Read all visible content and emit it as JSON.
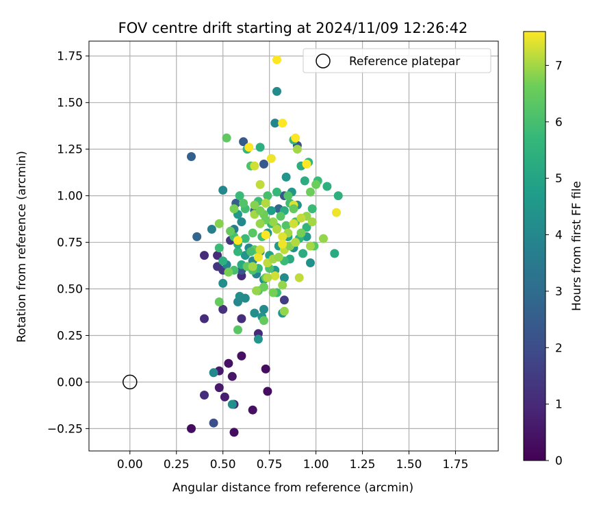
{
  "chart_data": {
    "type": "scatter",
    "title": "FOV centre drift starting at 2024/11/09 12:26:42",
    "xlabel": "Angular distance from reference (arcmin)",
    "ylabel": "Rotation from reference (arcmin)",
    "xlim": [
      -0.22,
      1.98
    ],
    "ylim": [
      -0.37,
      1.83
    ],
    "xticks": [
      "0.00",
      "0.25",
      "0.50",
      "0.75",
      "1.00",
      "1.25",
      "1.50",
      "1.75"
    ],
    "yticks": [
      "−0.25",
      "0.00",
      "0.25",
      "0.50",
      "0.75",
      "1.00",
      "1.25",
      "1.50",
      "1.75"
    ],
    "grid": true,
    "legend": {
      "position": "top-right",
      "label": "Reference platepar"
    },
    "reference_point": {
      "x": 0,
      "y": 0
    },
    "colorbar": {
      "label": "Hours from first FF file",
      "min": 0,
      "max": 7.6,
      "ticks": [
        "0",
        "1",
        "2",
        "3",
        "4",
        "5",
        "6",
        "7"
      ],
      "colormap": "viridis"
    },
    "series": [
      {
        "color_by": "hours",
        "points": [
          [
            0.33,
            -0.25,
            0.3
          ],
          [
            0.56,
            -0.27,
            0.3
          ],
          [
            0.66,
            -0.15,
            0.4
          ],
          [
            0.74,
            -0.05,
            0.3
          ],
          [
            0.51,
            -0.08,
            0.7
          ],
          [
            0.48,
            -0.03,
            0.6
          ],
          [
            0.55,
            0.03,
            0.5
          ],
          [
            0.48,
            0.06,
            0.6
          ],
          [
            0.53,
            0.1,
            0.4
          ],
          [
            0.6,
            0.14,
            0.4
          ],
          [
            0.73,
            0.07,
            0.3
          ],
          [
            0.56,
            -0.12,
            0.9
          ],
          [
            0.4,
            -0.07,
            1.1
          ],
          [
            0.45,
            -0.22,
            2.1
          ],
          [
            0.4,
            0.34,
            1.1
          ],
          [
            0.5,
            0.39,
            1.2
          ],
          [
            0.6,
            0.34,
            1.1
          ],
          [
            0.69,
            0.26,
            1.0
          ],
          [
            0.4,
            0.68,
            1.1
          ],
          [
            0.47,
            0.62,
            1.3
          ],
          [
            0.5,
            0.6,
            1.4
          ],
          [
            0.47,
            0.68,
            1.0
          ],
          [
            0.54,
            0.76,
            1.3
          ],
          [
            0.6,
            0.57,
            1.1
          ],
          [
            0.83,
            0.44,
            1.5
          ],
          [
            0.33,
            1.21,
            2.6
          ],
          [
            0.36,
            0.78,
            2.8
          ],
          [
            0.61,
            1.29,
            2.4
          ],
          [
            0.72,
            1.17,
            2.4
          ],
          [
            0.83,
            1.0,
            2.3
          ],
          [
            0.9,
            1.27,
            2.2
          ],
          [
            0.57,
            0.96,
            2.5
          ],
          [
            0.67,
            0.92,
            2.4
          ],
          [
            0.8,
            0.93,
            2.8
          ],
          [
            0.6,
            0.6,
            2.3
          ],
          [
            0.44,
            0.82,
            3.7
          ],
          [
            0.5,
            1.03,
            4.0
          ],
          [
            0.45,
            0.05,
            4.0
          ],
          [
            0.55,
            -0.12,
            4.3
          ],
          [
            0.5,
            0.53,
            4.2
          ],
          [
            0.58,
            0.43,
            4.0
          ],
          [
            0.59,
            0.46,
            4.2
          ],
          [
            0.62,
            0.45,
            4.1
          ],
          [
            0.67,
            0.37,
            4.2
          ],
          [
            0.69,
            0.23,
            4.4
          ],
          [
            0.72,
            0.39,
            4.1
          ],
          [
            0.71,
            0.35,
            4.4
          ],
          [
            0.79,
            1.56,
            4.1
          ],
          [
            0.78,
            1.39,
            3.9
          ],
          [
            0.84,
            1.1,
            4.4
          ],
          [
            0.56,
            0.82,
            3.5
          ],
          [
            0.6,
            0.86,
            4.0
          ],
          [
            0.58,
            0.9,
            4.6
          ],
          [
            0.52,
            0.63,
            3.9
          ],
          [
            0.62,
            0.68,
            4.4
          ],
          [
            0.64,
            0.72,
            4.0
          ],
          [
            0.7,
            0.7,
            4.3
          ],
          [
            0.74,
            0.8,
            4.5
          ],
          [
            0.76,
            0.92,
            4.7
          ],
          [
            0.8,
            0.73,
            4.6
          ],
          [
            0.85,
            0.78,
            4.9
          ],
          [
            0.88,
            0.72,
            4.3
          ],
          [
            0.83,
            0.56,
            4.1
          ],
          [
            0.82,
            0.37,
            4.5
          ],
          [
            0.9,
            0.95,
            4.3
          ],
          [
            0.95,
            0.78,
            4.6
          ],
          [
            0.97,
            0.64,
            4.3
          ],
          [
            0.87,
            1.02,
            4.5
          ],
          [
            0.68,
            0.58,
            3.8
          ],
          [
            0.72,
            0.55,
            4.2
          ],
          [
            0.66,
            0.65,
            4.0
          ],
          [
            0.78,
            0.6,
            4.6
          ],
          [
            0.75,
            0.68,
            4.9
          ],
          [
            0.52,
            1.31,
            6.4
          ],
          [
            0.63,
            1.25,
            5.6
          ],
          [
            0.65,
            1.16,
            6.1
          ],
          [
            0.7,
            1.26,
            5.4
          ],
          [
            0.88,
            1.3,
            5.7
          ],
          [
            0.92,
            1.16,
            5.3
          ],
          [
            0.96,
            1.18,
            5.6
          ],
          [
            1.01,
            1.08,
            5.8
          ],
          [
            1.06,
            1.05,
            5.4
          ],
          [
            1.12,
            1.0,
            5.4
          ],
          [
            1.1,
            0.69,
            5.2
          ],
          [
            0.98,
            0.93,
            5.8
          ],
          [
            0.94,
            1.08,
            5.3
          ],
          [
            0.86,
            0.96,
            5.9
          ],
          [
            0.83,
            0.92,
            5.3
          ],
          [
            0.89,
            0.86,
            6.0
          ],
          [
            0.95,
            0.83,
            5.6
          ],
          [
            0.99,
            0.73,
            6.3
          ],
          [
            0.93,
            0.69,
            5.3
          ],
          [
            0.91,
            0.77,
            5.6
          ],
          [
            0.86,
            0.66,
            5.2
          ],
          [
            0.83,
            0.65,
            5.8
          ],
          [
            0.75,
            0.61,
            6.1
          ],
          [
            0.73,
            0.56,
            6.4
          ],
          [
            0.79,
            0.48,
            5.8
          ],
          [
            0.69,
            0.49,
            6.2
          ],
          [
            0.69,
            0.61,
            5.7
          ],
          [
            0.66,
            0.6,
            6.1
          ],
          [
            0.6,
            0.63,
            5.2
          ],
          [
            0.56,
            0.6,
            6.0
          ],
          [
            0.58,
            0.7,
            5.6
          ],
          [
            0.53,
            0.59,
            6.7
          ],
          [
            0.5,
            0.65,
            5.4
          ],
          [
            0.48,
            0.72,
            5.8
          ],
          [
            0.56,
            0.78,
            6.0
          ],
          [
            0.58,
            0.74,
            5.2
          ],
          [
            0.62,
            0.77,
            5.8
          ],
          [
            0.66,
            0.8,
            6.3
          ],
          [
            0.62,
            0.93,
            5.9
          ],
          [
            0.59,
            1.0,
            5.8
          ],
          [
            0.61,
            0.96,
            6.2
          ],
          [
            0.69,
            0.97,
            5.9
          ],
          [
            0.72,
            0.9,
            6.6
          ],
          [
            0.76,
            0.85,
            5.7
          ],
          [
            0.79,
            0.83,
            6.2
          ],
          [
            0.81,
            0.89,
            6.3
          ],
          [
            0.84,
            0.84,
            6.2
          ],
          [
            0.79,
            1.02,
            5.7
          ],
          [
            0.74,
            1.0,
            6.0
          ],
          [
            0.71,
            0.78,
            5.9
          ],
          [
            0.67,
            0.71,
            6.5
          ],
          [
            0.65,
            0.7,
            6.0
          ],
          [
            0.63,
            0.62,
            6.5
          ],
          [
            0.54,
            0.81,
            6.5
          ],
          [
            0.56,
            0.93,
            6.7
          ],
          [
            0.48,
            0.85,
            6.8
          ],
          [
            0.48,
            0.43,
            6.5
          ],
          [
            0.58,
            0.28,
            6.3
          ],
          [
            0.72,
            0.33,
            6.5
          ],
          [
            0.72,
            0.51,
            6.6
          ],
          [
            0.68,
            0.49,
            6.9
          ],
          [
            0.77,
            0.48,
            6.7
          ],
          [
            0.82,
            0.52,
            6.9
          ],
          [
            0.83,
            0.38,
            6.9
          ],
          [
            0.91,
            0.56,
            7.2
          ],
          [
            0.78,
            0.57,
            7.3
          ],
          [
            0.74,
            0.56,
            7.1
          ],
          [
            0.66,
            0.62,
            7.0
          ],
          [
            0.69,
            0.67,
            7.5
          ],
          [
            0.7,
            0.71,
            7.3
          ],
          [
            0.74,
            0.64,
            7.2
          ],
          [
            0.77,
            0.66,
            7.0
          ],
          [
            0.8,
            0.67,
            6.9
          ],
          [
            0.83,
            0.71,
            7.2
          ],
          [
            0.86,
            0.73,
            6.8
          ],
          [
            0.89,
            0.75,
            7.1
          ],
          [
            0.92,
            0.8,
            6.7
          ],
          [
            0.97,
            0.73,
            7.0
          ],
          [
            1.04,
            0.77,
            6.9
          ],
          [
            0.98,
            0.86,
            7.0
          ],
          [
            0.95,
            0.89,
            6.9
          ],
          [
            0.92,
            0.88,
            7.2
          ],
          [
            0.88,
            0.85,
            7.3
          ],
          [
            0.85,
            0.8,
            7.0
          ],
          [
            0.82,
            0.78,
            7.4
          ],
          [
            0.79,
            0.82,
            7.1
          ],
          [
            0.77,
            0.86,
            6.9
          ],
          [
            0.73,
            0.87,
            6.6
          ],
          [
            0.7,
            0.85,
            6.9
          ],
          [
            0.67,
            0.9,
            7.0
          ],
          [
            0.7,
            0.92,
            6.7
          ],
          [
            0.73,
            0.96,
            7.1
          ],
          [
            0.67,
            0.95,
            6.8
          ],
          [
            0.7,
            1.06,
            7.2
          ],
          [
            0.67,
            1.16,
            7.3
          ],
          [
            0.76,
            1.2,
            7.5
          ],
          [
            0.64,
            1.26,
            7.6
          ],
          [
            0.73,
            0.79,
            7.6
          ],
          [
            0.58,
            0.76,
            7.6
          ],
          [
            0.82,
            0.74,
            7.5
          ],
          [
            0.88,
            0.95,
            7.4
          ],
          [
            0.9,
            1.25,
            7.0
          ],
          [
            0.95,
            1.17,
            7.6
          ],
          [
            0.89,
            1.31,
            7.6
          ],
          [
            0.82,
            1.39,
            7.6
          ],
          [
            0.79,
            1.73,
            7.6
          ],
          [
            1.0,
            1.06,
            6.6
          ],
          [
            1.11,
            0.91,
            7.5
          ],
          [
            0.97,
            1.02,
            6.6
          ],
          [
            0.88,
            0.93,
            6.5
          ],
          [
            0.85,
            1.0,
            6.2
          ]
        ]
      }
    ]
  }
}
